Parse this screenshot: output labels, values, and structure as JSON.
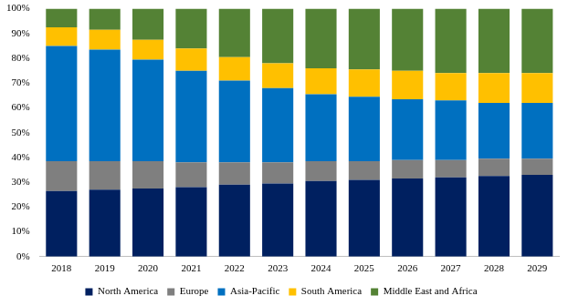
{
  "chart_data": {
    "type": "bar",
    "stacked": true,
    "grid": false,
    "legend": "bottom",
    "categories": [
      "2018",
      "2019",
      "2020",
      "2021",
      "2022",
      "2023",
      "2024",
      "2025",
      "2026",
      "2027",
      "2028",
      "2029"
    ],
    "ylim": [
      0,
      100
    ],
    "yticks": [
      {
        "value": 0,
        "label": "0%"
      },
      {
        "value": 10,
        "label": "10%"
      },
      {
        "value": 20,
        "label": "20%"
      },
      {
        "value": 30,
        "label": "30%"
      },
      {
        "value": 40,
        "label": "40%"
      },
      {
        "value": 50,
        "label": "50%"
      },
      {
        "value": 60,
        "label": "60%"
      },
      {
        "value": 70,
        "label": "70%"
      },
      {
        "value": 80,
        "label": "80%"
      },
      {
        "value": 90,
        "label": "90%"
      },
      {
        "value": 100,
        "label": "100%"
      }
    ],
    "series": [
      {
        "name": "North America",
        "color": "#002060",
        "values": [
          26.5,
          27,
          27.5,
          28,
          29,
          29.5,
          30.5,
          31,
          31.5,
          32,
          32.5,
          33
        ]
      },
      {
        "name": "Europe",
        "color": "#7f7f7f",
        "values": [
          12,
          11.5,
          11,
          10,
          9,
          8.5,
          8,
          7.5,
          7.5,
          7,
          7,
          6.5
        ]
      },
      {
        "name": "Asia-Pacific",
        "color": "#0070c0",
        "values": [
          46.5,
          45,
          41,
          37,
          33,
          30,
          27,
          26,
          24.5,
          24,
          22.5,
          22.5
        ]
      },
      {
        "name": "South America",
        "color": "#ffc000",
        "values": [
          7.5,
          8,
          8,
          9,
          9.5,
          10,
          10.5,
          11,
          11.5,
          11,
          12,
          12
        ]
      },
      {
        "name": "Middle East and Africa",
        "color": "#548235",
        "values": [
          7.5,
          8.5,
          12.5,
          16,
          19.5,
          22,
          24,
          24.5,
          25,
          26,
          26,
          26
        ]
      }
    ]
  }
}
